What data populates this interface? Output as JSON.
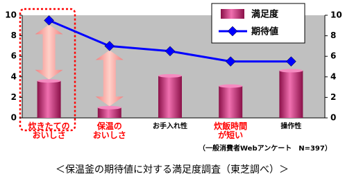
{
  "chart_data": {
    "type": "bar-line",
    "categories": [
      "炊きたての\nおいしさ",
      "保温の\nおいしさ",
      "お手入れ性",
      "炊飯時間\nが短い",
      "操作性"
    ],
    "category_colors": [
      "#ff0000",
      "#ff0000",
      "#000000",
      "#ff0000",
      "#000000"
    ],
    "series": [
      {
        "name": "満足度",
        "type": "bar",
        "color": "#cc3377",
        "values": [
          3.6,
          1.0,
          4.1,
          3.1,
          4.6
        ]
      },
      {
        "name": "期待値",
        "type": "line",
        "color": "#0000ff",
        "axis": "y2",
        "values": [
          9.5,
          7.0,
          6.5,
          5.5,
          5.5
        ]
      }
    ],
    "gap_arrows": [
      true,
      true,
      true,
      true,
      false
    ],
    "ylim": [
      0,
      10
    ],
    "yticks": [
      0,
      2,
      4,
      6,
      8,
      10
    ],
    "y2lim": [
      0,
      10
    ],
    "y2ticks": [
      0,
      2,
      4,
      6,
      8,
      10
    ],
    "note": "（一般消費者Webアンケート　N=397）",
    "caption": "＜保温釜の期待値に対する満足度調査（東芝調べ）＞"
  }
}
